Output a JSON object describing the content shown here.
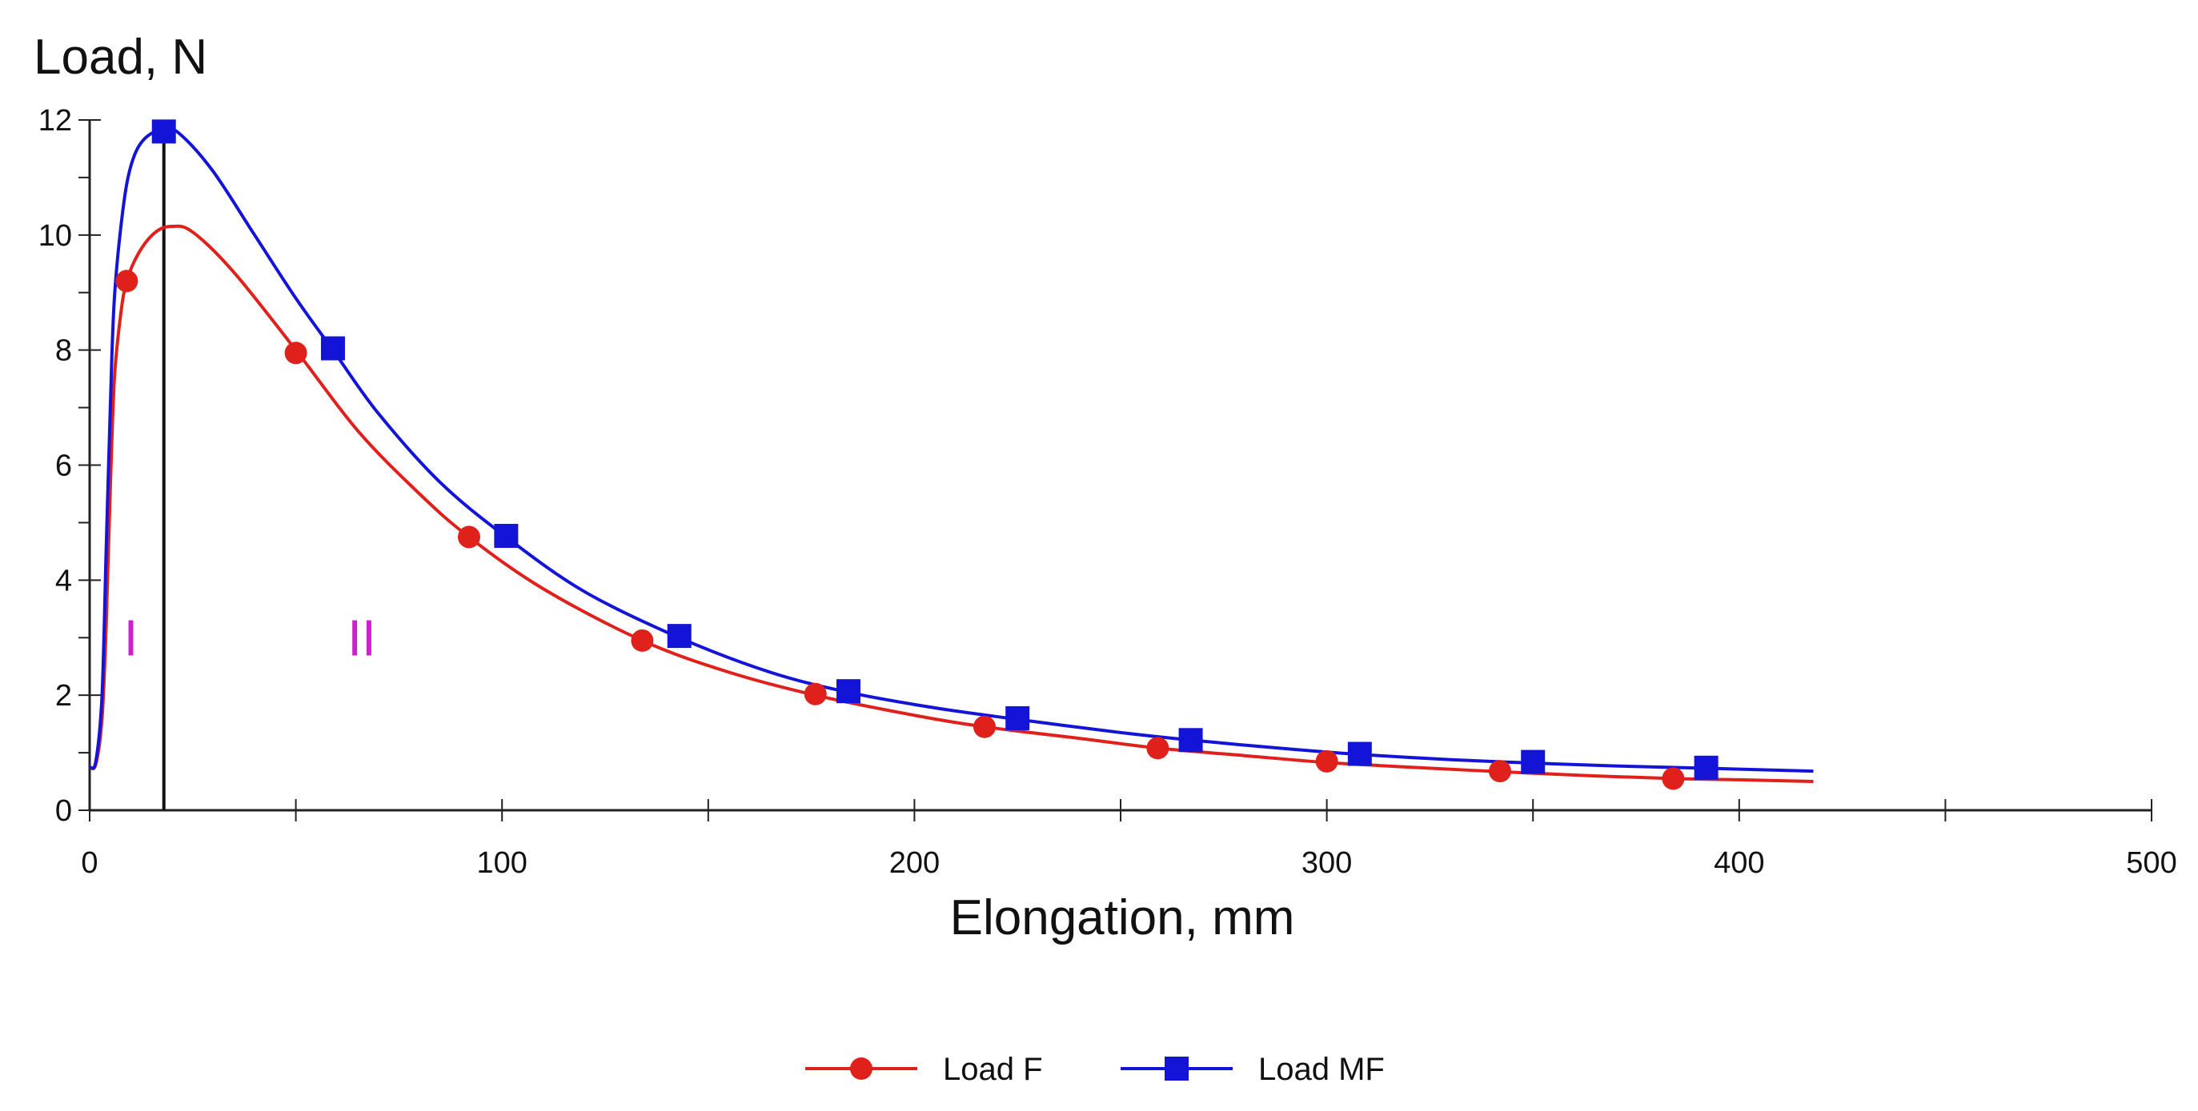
{
  "chart_data": {
    "type": "line",
    "title": "",
    "ylabel": "Load, N",
    "xlabel": "Elongation, mm",
    "xlim": [
      0,
      500
    ],
    "ylim": [
      0,
      12
    ],
    "x_ticks": [
      0,
      100,
      200,
      300,
      400,
      500
    ],
    "x_tick_labels": [
      "0",
      "100",
      "200",
      "300",
      "400",
      "500"
    ],
    "y_ticks": [
      0,
      2,
      4,
      6,
      8,
      10,
      12
    ],
    "y_tick_labels": [
      "0",
      "2",
      "4",
      "6",
      "8",
      "10",
      "12"
    ],
    "grid": false,
    "vertical_line_x": 18,
    "region_labels": [
      {
        "text": "I",
        "x": 10,
        "y": 3,
        "color": "#cc22cc"
      },
      {
        "text": "II",
        "x": 66,
        "y": 3,
        "color": "#cc22cc"
      }
    ],
    "series": [
      {
        "name": "Load F",
        "color": "#e0201a",
        "marker": "circle",
        "curve": [
          [
            0,
            0.75
          ],
          [
            1.5,
            0.8
          ],
          [
            3,
            1.6
          ],
          [
            4,
            3.2
          ],
          [
            5,
            5.6
          ],
          [
            6,
            7.5
          ],
          [
            7.5,
            8.6
          ],
          [
            9,
            9.2
          ],
          [
            12,
            9.7
          ],
          [
            16,
            10.05
          ],
          [
            20,
            10.15
          ],
          [
            25,
            10.05
          ],
          [
            35,
            9.35
          ],
          [
            50,
            8.0
          ],
          [
            65,
            6.6
          ],
          [
            80,
            5.5
          ],
          [
            92,
            4.75
          ],
          [
            110,
            3.85
          ],
          [
            134,
            2.95
          ],
          [
            155,
            2.4
          ],
          [
            176,
            2.0
          ],
          [
            200,
            1.65
          ],
          [
            217,
            1.45
          ],
          [
            240,
            1.25
          ],
          [
            259,
            1.08
          ],
          [
            280,
            0.95
          ],
          [
            300,
            0.83
          ],
          [
            320,
            0.75
          ],
          [
            342,
            0.67
          ],
          [
            364,
            0.6
          ],
          [
            384,
            0.55
          ],
          [
            400,
            0.53
          ],
          [
            418,
            0.5
          ]
        ],
        "markers": [
          [
            9,
            9.2
          ],
          [
            50,
            7.95
          ],
          [
            92,
            4.75
          ],
          [
            134,
            2.95
          ],
          [
            176,
            2.02
          ],
          [
            217,
            1.45
          ],
          [
            259,
            1.08
          ],
          [
            300,
            0.85
          ],
          [
            342,
            0.68
          ],
          [
            384,
            0.55
          ]
        ]
      },
      {
        "name": "Load MF",
        "color": "#1414d9",
        "marker": "square",
        "curve": [
          [
            0,
            0.75
          ],
          [
            1.5,
            0.85
          ],
          [
            3,
            2.0
          ],
          [
            4,
            4.5
          ],
          [
            5,
            7.0
          ],
          [
            6,
            8.9
          ],
          [
            8,
            10.4
          ],
          [
            10,
            11.2
          ],
          [
            13,
            11.65
          ],
          [
            18,
            11.85
          ],
          [
            22,
            11.75
          ],
          [
            30,
            11.1
          ],
          [
            40,
            10.0
          ],
          [
            50,
            8.9
          ],
          [
            59,
            8.0
          ],
          [
            70,
            6.9
          ],
          [
            85,
            5.7
          ],
          [
            101,
            4.75
          ],
          [
            120,
            3.8
          ],
          [
            143,
            3.0
          ],
          [
            165,
            2.4
          ],
          [
            184,
            2.05
          ],
          [
            205,
            1.78
          ],
          [
            225,
            1.58
          ],
          [
            250,
            1.35
          ],
          [
            267,
            1.22
          ],
          [
            290,
            1.07
          ],
          [
            308,
            0.97
          ],
          [
            330,
            0.88
          ],
          [
            350,
            0.82
          ],
          [
            370,
            0.77
          ],
          [
            392,
            0.73
          ],
          [
            418,
            0.68
          ]
        ],
        "markers": [
          [
            18,
            11.8
          ],
          [
            59,
            8.03
          ],
          [
            101,
            4.77
          ],
          [
            143,
            3.03
          ],
          [
            184,
            2.07
          ],
          [
            225,
            1.6
          ],
          [
            267,
            1.22
          ],
          [
            308,
            0.98
          ],
          [
            350,
            0.84
          ],
          [
            392,
            0.74
          ]
        ]
      }
    ]
  }
}
